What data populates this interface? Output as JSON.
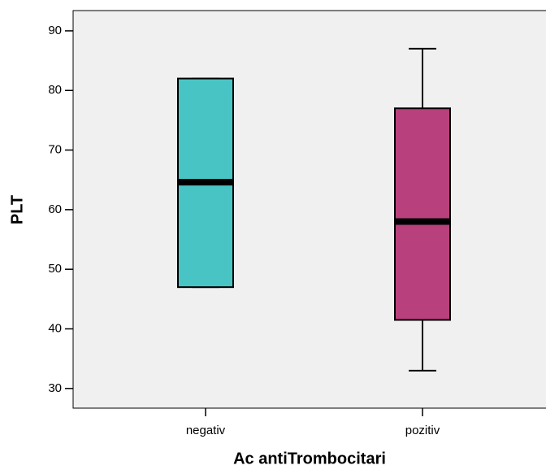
{
  "chart_data": {
    "type": "box",
    "x_label": "Ac antiTrombocitari",
    "y_label": "PLT",
    "categories": [
      "negativ",
      "pozitiv"
    ],
    "boxes": [
      {
        "min": 47,
        "q1": 47,
        "median": 64.6,
        "q3": 82,
        "max": 82,
        "color": "#48c4c4"
      },
      {
        "min": 33,
        "q1": 41.5,
        "median": 58,
        "q3": 77,
        "max": 87,
        "color": "#b8407c"
      }
    ],
    "ylim": [
      26.7,
      93.4
    ],
    "yticks": [
      30,
      40,
      50,
      60,
      70,
      80,
      90
    ],
    "background": "#f0f0f0"
  }
}
